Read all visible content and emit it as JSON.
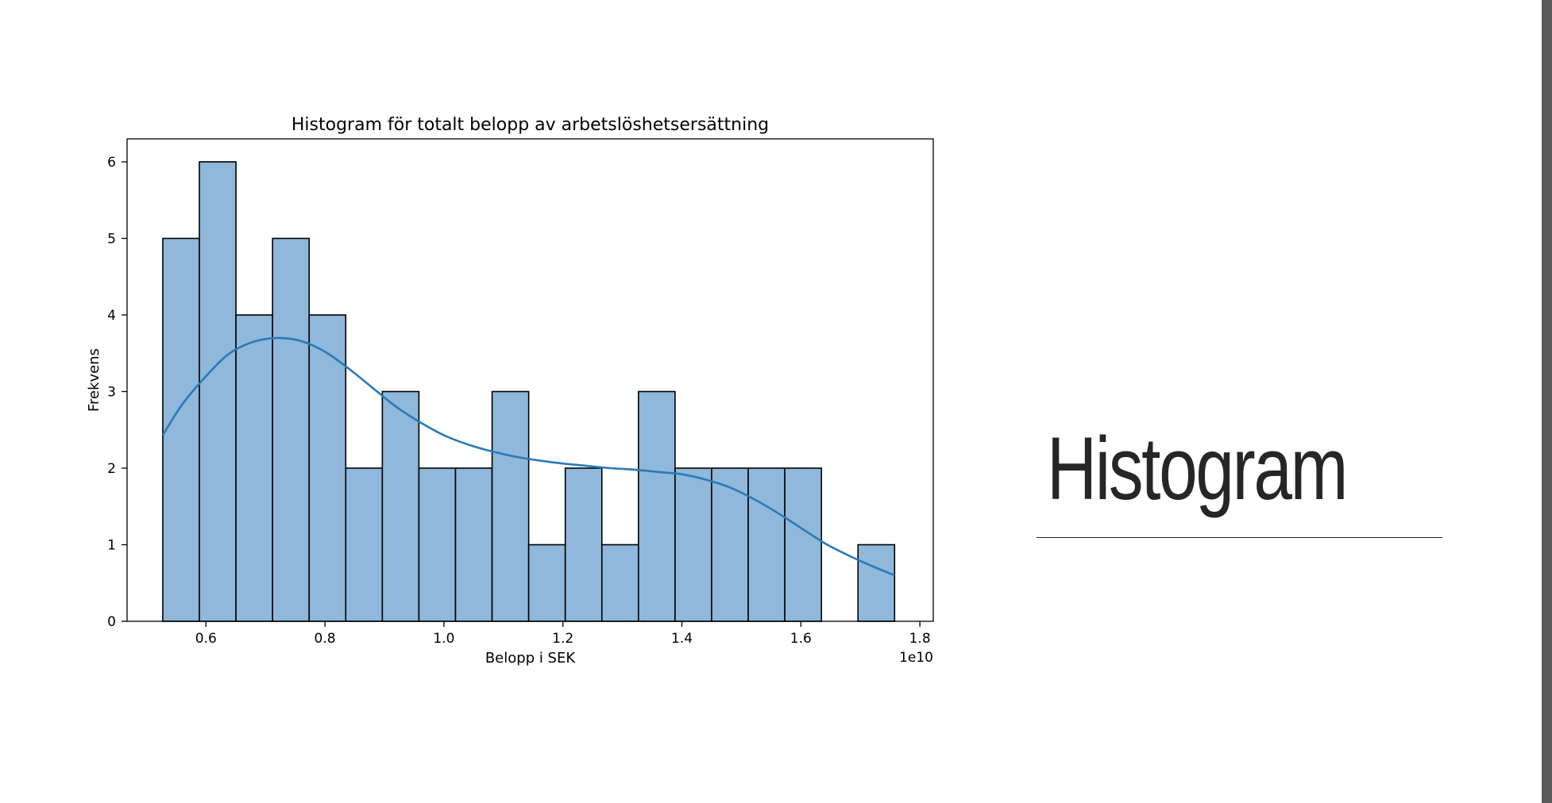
{
  "slide": {
    "title": "Histogram"
  },
  "colors": {
    "bar_fill": "#8fb8da",
    "bar_edge": "#000000",
    "kde_line": "#2a7ab8",
    "slide_edge": "#5a5a5a",
    "slide_title": "#262626"
  },
  "chart_data": {
    "type": "histogram",
    "title": "Histogram för totalt belopp av arbetslöshetsersättning",
    "xlabel": "Belopp i SEK",
    "ylabel": "Frekvens",
    "x_offset_label": "1e10",
    "x_scale": 10000000000,
    "xlim": [
      0.4675,
      1.8225
    ],
    "ylim": [
      0,
      6.3
    ],
    "grid": false,
    "x_ticks": [
      0.6,
      0.8,
      1.0,
      1.2,
      1.4,
      1.6,
      1.8
    ],
    "x_tick_labels": [
      "0.6",
      "0.8",
      "1.0",
      "1.2",
      "1.4",
      "1.6",
      "1.8"
    ],
    "y_ticks": [
      0,
      1,
      2,
      3,
      4,
      5,
      6
    ],
    "y_tick_labels": [
      "0",
      "1",
      "2",
      "3",
      "4",
      "5",
      "6"
    ],
    "bin_edges": [
      0.5275,
      0.589,
      0.6505,
      0.712,
      0.7735,
      0.835,
      0.8965,
      0.958,
      1.0195,
      1.081,
      1.1425,
      1.204,
      1.2655,
      1.327,
      1.3885,
      1.45,
      1.5115,
      1.573,
      1.6345,
      1.696,
      1.7575
    ],
    "counts": [
      5,
      6,
      4,
      5,
      4,
      2,
      3,
      2,
      2,
      3,
      1,
      2,
      1,
      3,
      2,
      2,
      2,
      2,
      0,
      1
    ],
    "kde": {
      "x": [
        0.5275,
        0.56,
        0.6,
        0.64,
        0.68,
        0.72,
        0.76,
        0.8,
        0.84,
        0.88,
        0.92,
        0.96,
        1.0,
        1.04,
        1.08,
        1.12,
        1.16,
        1.2,
        1.24,
        1.28,
        1.32,
        1.36,
        1.4,
        1.44,
        1.48,
        1.52,
        1.56,
        1.6,
        1.64,
        1.68,
        1.72,
        1.7575
      ],
      "y": [
        2.43,
        2.83,
        3.2,
        3.5,
        3.65,
        3.7,
        3.66,
        3.52,
        3.3,
        3.05,
        2.8,
        2.6,
        2.43,
        2.31,
        2.22,
        2.15,
        2.1,
        2.06,
        2.03,
        2.0,
        1.98,
        1.95,
        1.92,
        1.85,
        1.75,
        1.6,
        1.42,
        1.22,
        1.02,
        0.86,
        0.72,
        0.6
      ]
    }
  }
}
